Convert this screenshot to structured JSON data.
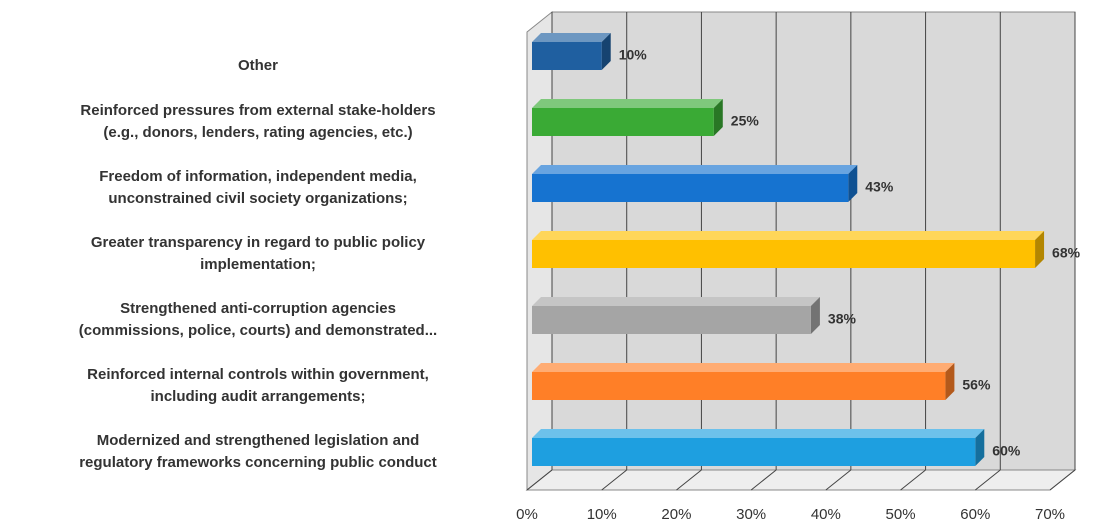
{
  "chart_data": {
    "type": "bar3d",
    "categories": [
      [
        "Other"
      ],
      [
        "Reinforced pressures from external stake-holders",
        "(e.g., donors, lenders, rating agencies, etc.)"
      ],
      [
        "Freedom of information, independent media,",
        "unconstrained civil society organizations;"
      ],
      [
        "Greater transparency in regard to public policy",
        "implementation;"
      ],
      [
        "Strengthened anti-corruption agencies",
        "(commissions, police, courts) and demonstrated..."
      ],
      [
        "Reinforced internal controls within government,",
        "including audit arrangements;"
      ],
      [
        "Modernized and strengthened legislation and",
        "regulatory frameworks concerning public conduct"
      ]
    ],
    "values": [
      10,
      25,
      43,
      68,
      38,
      56,
      60
    ],
    "value_labels": [
      "10%",
      "25%",
      "43%",
      "68%",
      "38%",
      "56%",
      "60%"
    ],
    "colors": [
      "#1f5fa0",
      "#3aaa35",
      "#1673d0",
      "#ffc000",
      "#a5a5a5",
      "#ff7f27",
      "#1e9fe0"
    ],
    "xlim": [
      0,
      70
    ],
    "xticks": [
      {
        "value": 0,
        "label": "0%"
      },
      {
        "value": 10,
        "label": "10%"
      },
      {
        "value": 20,
        "label": "20%"
      },
      {
        "value": 30,
        "label": "30%"
      },
      {
        "value": 40,
        "label": "40%"
      },
      {
        "value": 50,
        "label": "50%"
      },
      {
        "value": 60,
        "label": "60%"
      },
      {
        "value": 70,
        "label": "70%"
      }
    ],
    "grid": true
  }
}
